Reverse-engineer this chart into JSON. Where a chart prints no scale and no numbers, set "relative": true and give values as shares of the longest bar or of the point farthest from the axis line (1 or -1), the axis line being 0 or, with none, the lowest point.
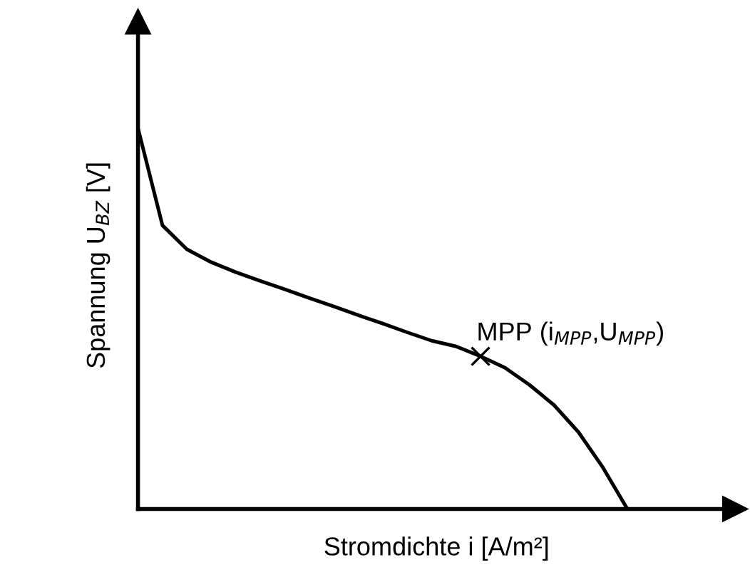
{
  "chart_data": {
    "type": "line",
    "relative": true,
    "xlabel": "Stromdichte i [A/m²]",
    "ylabel": "Spannung U$_{BZ}$ [V]",
    "categories": [
      null,
      null,
      null,
      null,
      null,
      null,
      null,
      null,
      null,
      null,
      null,
      null,
      null,
      null,
      null,
      null,
      null,
      null,
      null,
      null,
      null
    ],
    "series": [
      {
        "color": "#000000",
        "values": [
          1.0,
          0.745,
          0.682,
          0.648,
          0.622,
          0.599,
          0.577,
          0.554,
          0.532,
          0.509,
          0.487,
          0.464,
          0.442,
          0.427,
          0.401,
          0.371,
          0.326,
          0.273,
          0.202,
          0.109,
          0.0
        ]
      }
    ],
    "annotations": [
      "MPP (i$_{MPP}$,U$_{MPP}$)"
    ],
    "legend": false
  }
}
